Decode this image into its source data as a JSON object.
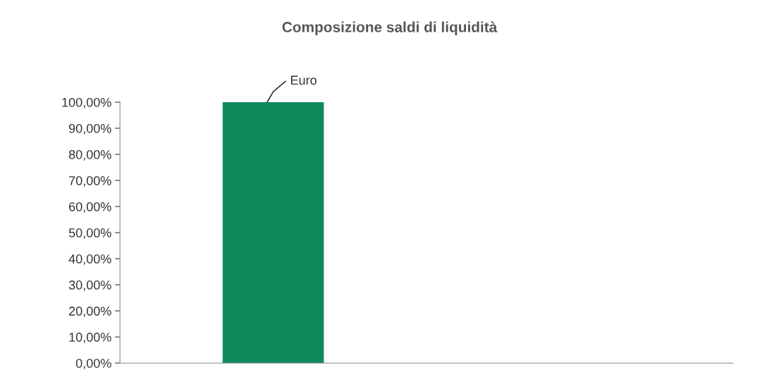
{
  "chart_data": {
    "type": "bar",
    "title": "Composizione saldi di liquidità",
    "categories": [
      null,
      null
    ],
    "series": [
      {
        "name": "Euro",
        "color": "#0e8a5a",
        "values": [
          100,
          null
        ]
      }
    ],
    "ylim": [
      0,
      100
    ],
    "yticks": [
      {
        "value": 0,
        "label": "0,00%"
      },
      {
        "value": 10,
        "label": "10,00%"
      },
      {
        "value": 20,
        "label": "20,00%"
      },
      {
        "value": 30,
        "label": "30,00%"
      },
      {
        "value": 40,
        "label": "40,00%"
      },
      {
        "value": 50,
        "label": "50,00%"
      },
      {
        "value": 60,
        "label": "60,00%"
      },
      {
        "value": 70,
        "label": "70,00%"
      },
      {
        "value": 80,
        "label": "80,00%"
      },
      {
        "value": 90,
        "label": "90,00%"
      },
      {
        "value": 100,
        "label": "100,00%"
      }
    ],
    "grid": false,
    "legend": false
  }
}
